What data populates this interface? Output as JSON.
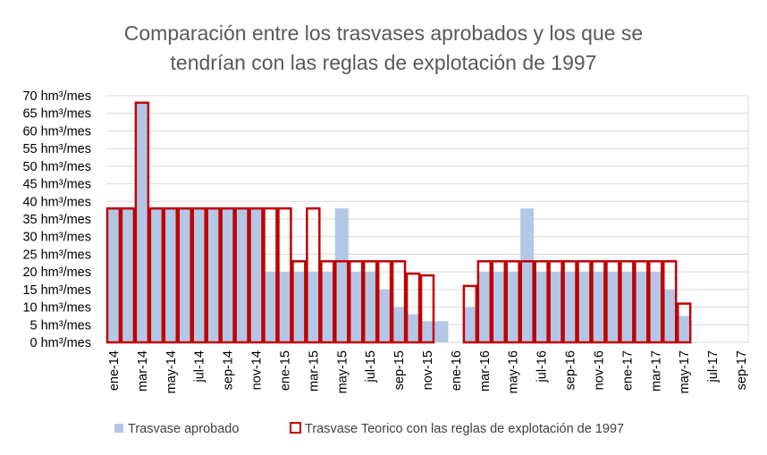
{
  "chart_data": {
    "type": "bar",
    "title": "Comparación entre los trasvases aprobados y los que se tendrían con las reglas de explotación de 1997",
    "title_lines": [
      "Comparación entre los trasvases aprobados y los que se",
      "tendrían con las reglas de explotación de 1997"
    ],
    "xlabel": "",
    "ylabel": "",
    "y_unit": "hm³/mes",
    "ylim": [
      0,
      70
    ],
    "y_step": 5,
    "y_tick_labels": [
      "0 hm³/mes",
      "5 hm³/mes",
      "10 hm³/mes",
      "15 hm³/mes",
      "20 hm³/mes",
      "25 hm³/mes",
      "30 hm³/mes",
      "35 hm³/mes",
      "40 hm³/mes",
      "45 hm³/mes",
      "50 hm³/mes",
      "55 hm³/mes",
      "60 hm³/mes",
      "65 hm³/mes",
      "70 hm³/mes"
    ],
    "grid": true,
    "legend_position": "bottom",
    "categories": [
      "ene-14",
      "feb-14",
      "mar-14",
      "abr-14",
      "may-14",
      "jun-14",
      "jul-14",
      "ago-14",
      "sep-14",
      "oct-14",
      "nov-14",
      "dic-14",
      "ene-15",
      "feb-15",
      "mar-15",
      "abr-15",
      "may-15",
      "jun-15",
      "jul-15",
      "ago-15",
      "sep-15",
      "oct-15",
      "nov-15",
      "dic-15",
      "ene-16",
      "feb-16",
      "mar-16",
      "abr-16",
      "may-16",
      "jun-16",
      "jul-16",
      "ago-16",
      "sep-16",
      "oct-16",
      "nov-16",
      "dic-16",
      "ene-17",
      "feb-17",
      "mar-17",
      "abr-17",
      "may-17",
      "jun-17",
      "jul-17",
      "ago-17",
      "sep-17"
    ],
    "tick_labels": [
      "ene-14",
      "mar-14",
      "may-14",
      "jul-14",
      "sep-14",
      "nov-14",
      "ene-15",
      "mar-15",
      "may-15",
      "jul-15",
      "sep-15",
      "nov-15",
      "ene-16",
      "mar-16",
      "may-16",
      "jul-16",
      "sep-16",
      "nov-16",
      "ene-17",
      "mar-17",
      "may-17",
      "jul-17",
      "sep-17"
    ],
    "series": [
      {
        "name": "Trasvase aprobado",
        "style": "filled",
        "color": "#b4c7e7",
        "values": [
          38,
          38,
          68,
          38,
          38,
          38,
          38,
          38,
          38,
          38,
          38,
          20,
          20,
          20,
          20,
          20,
          38,
          20,
          20,
          15,
          10,
          8,
          6,
          6,
          0,
          10,
          20,
          20,
          20,
          38,
          20,
          20,
          20,
          20,
          20,
          20,
          20,
          20,
          20,
          15,
          7.5,
          0,
          0,
          0,
          0
        ]
      },
      {
        "name": "Trasvase Teorico con las reglas de explotación de 1997",
        "style": "outline",
        "color": "#c00000",
        "values": [
          38,
          38,
          68,
          38,
          38,
          38,
          38,
          38,
          38,
          38,
          38,
          38,
          38,
          23,
          38,
          23,
          23,
          23,
          23,
          23,
          23,
          19.5,
          19,
          0,
          0,
          16,
          23,
          23,
          23,
          23,
          23,
          23,
          23,
          23,
          23,
          23,
          23,
          23,
          23,
          23,
          11,
          0,
          0,
          0,
          0
        ]
      }
    ]
  }
}
